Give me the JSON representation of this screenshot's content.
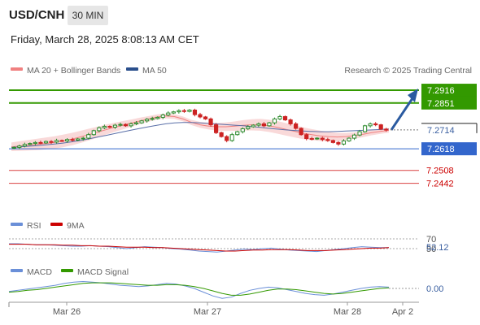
{
  "header": {
    "symbol": "USD/CNH",
    "interval": "30 MIN",
    "datetime": "Friday, March 28, 2025 8:08:13 AM CET"
  },
  "legend": {
    "ma20_label": "MA 20 + Bollinger Bands",
    "ma50_label": "MA 50",
    "ma20_color": "#f08080",
    "ma50_color": "#2a4f8c",
    "credit": "Research © 2025 Trading Central",
    "rsi_label": "RSI",
    "rsi_ma_label": "9MA",
    "rsi_color": "#6a8fd8",
    "rsi_ma_color": "#cc0000",
    "macd_label": "MACD",
    "macd_signal_label": "MACD Signal",
    "macd_color": "#6a8fd8",
    "macd_signal_color": "#339900"
  },
  "chart_data": {
    "type": "candlestick",
    "x_labels": [
      "Mar 26",
      "Mar 27",
      "Mar 28",
      "Apr 2"
    ],
    "price_ylim": [
      7.23,
      7.297
    ],
    "current_price": "7.2714",
    "levels": [
      {
        "label": "7.2916",
        "value": 7.2916,
        "color": "#339900",
        "style": "resistance"
      },
      {
        "label": "7.2851",
        "value": 7.2851,
        "color": "#339900",
        "style": "resistance"
      },
      {
        "label": "7.2618",
        "value": 7.2618,
        "color": "#3366cc",
        "style": "pivot"
      },
      {
        "label": "7.2508",
        "value": 7.2508,
        "color": "#cc0000",
        "style": "support"
      },
      {
        "label": "7.2442",
        "value": 7.2442,
        "color": "#cc0000",
        "style": "support"
      }
    ],
    "close_series": [
      7.2625,
      7.2632,
      7.264,
      7.2645,
      7.265,
      7.2648,
      7.2655,
      7.2652,
      7.266,
      7.2658,
      7.2665,
      7.2662,
      7.2668,
      7.2672,
      7.269,
      7.271,
      7.2725,
      7.2732,
      7.2728,
      7.2738,
      7.2742,
      7.2735,
      7.2745,
      7.275,
      7.276,
      7.2768,
      7.2772,
      7.2778,
      7.279,
      7.28,
      7.2806,
      7.2812,
      7.2808,
      7.2815,
      7.2792,
      7.278,
      7.277,
      7.274,
      7.27,
      7.268,
      7.266,
      7.269,
      7.2705,
      7.272,
      7.273,
      7.2738,
      7.2745,
      7.2735,
      7.275,
      7.277,
      7.2782,
      7.2765,
      7.2745,
      7.2722,
      7.269,
      7.267,
      7.2668,
      7.2672,
      7.2665,
      7.266,
      7.265,
      7.2642,
      7.2658,
      7.2672,
      7.2688,
      7.2705,
      7.2735,
      7.2745,
      7.274,
      7.2718,
      7.2714
    ],
    "ma20_series": [
      7.2628,
      7.2632,
      7.2636,
      7.264,
      7.2645,
      7.265,
      7.2658,
      7.2667,
      7.2678,
      7.269,
      7.2702,
      7.2715,
      7.2727,
      7.2738,
      7.2749,
      7.276,
      7.277,
      7.278,
      7.2785,
      7.2782,
      7.277,
      7.2752,
      7.274,
      7.2733,
      7.273,
      7.273,
      7.2733,
      7.2737,
      7.274,
      7.274,
      7.2735,
      7.2727,
      7.2717,
      7.2707,
      7.2697,
      7.269,
      7.2684,
      7.268,
      7.2678,
      7.268,
      7.2685,
      7.2692,
      7.27,
      7.2706,
      7.2712
    ],
    "ma50_series": [
      7.2625,
      7.2628,
      7.2631,
      7.2634,
      7.2638,
      7.2642,
      7.2647,
      7.2653,
      7.266,
      7.2668,
      7.2677,
      7.2686,
      7.2695,
      7.2704,
      7.2713,
      7.2722,
      7.273,
      7.2738,
      7.2745,
      7.275,
      7.2752,
      7.2752,
      7.275,
      7.2747,
      7.2744,
      7.2741,
      7.2738,
      7.2735,
      7.2731,
      7.2727,
      7.2722,
      7.2718,
      7.2714,
      7.2711,
      7.2708,
      7.2706,
      7.2705,
      7.2705,
      7.2706,
      7.2708,
      7.271,
      7.2712,
      7.2714,
      7.2716,
      7.2718
    ],
    "rsi_value": "52.12",
    "rsi_ticks": [
      "70",
      "50"
    ],
    "rsi_ylim": [
      30,
      80
    ],
    "rsi_series": [
      60,
      60,
      59,
      58,
      58,
      57,
      56,
      55,
      55,
      56,
      55,
      54,
      52,
      50,
      52,
      54,
      53,
      52,
      50,
      49,
      47,
      45,
      44,
      43,
      45,
      47,
      49,
      48,
      50,
      51,
      49,
      47,
      46,
      45,
      44,
      46,
      48,
      50,
      52,
      54,
      53,
      52,
      52
    ],
    "rsi_ma_series": [
      59,
      59,
      59,
      58,
      58,
      58,
      57,
      57,
      56,
      56,
      55,
      55,
      54,
      53,
      53,
      53,
      52,
      52,
      51,
      50,
      49,
      48,
      47,
      46,
      45,
      45,
      46,
      47,
      47,
      48,
      48,
      48,
      47,
      46,
      46,
      46,
      47,
      48,
      49,
      50,
      51,
      51,
      52
    ],
    "macd_value": "0.00",
    "macd_series": [
      -0.0005,
      -0.0003,
      -0.0001,
      0.0001,
      0.0003,
      0.0005,
      0.0008,
      0.001,
      0.0011,
      0.001,
      0.0009,
      0.0007,
      0.0005,
      0.0004,
      0.0003,
      0.0004,
      0.0006,
      0.0008,
      0.0007,
      0.0004,
      0.0,
      -0.0006,
      -0.0012,
      -0.0016,
      -0.0014,
      -0.0008,
      -0.0003,
      0.0,
      0.0002,
      0.0001,
      -0.0002,
      -0.0005,
      -0.0008,
      -0.001,
      -0.0011,
      -0.0009,
      -0.0006,
      -0.0003,
      0.0,
      0.0002,
      0.0003,
      0.0002
    ],
    "macd_signal_series": [
      -0.0006,
      -0.0005,
      -0.0003,
      -0.0002,
      0.0,
      0.0002,
      0.0004,
      0.0006,
      0.0008,
      0.0009,
      0.0009,
      0.0009,
      0.0008,
      0.0007,
      0.0006,
      0.0005,
      0.0005,
      0.0006,
      0.0006,
      0.0005,
      0.0003,
      0.0,
      -0.0004,
      -0.0008,
      -0.0011,
      -0.0011,
      -0.0009,
      -0.0006,
      -0.0003,
      -0.0001,
      -0.0001,
      -0.0002,
      -0.0004,
      -0.0006,
      -0.0008,
      -0.0009,
      -0.0008,
      -0.0006,
      -0.0004,
      -0.0002,
      0.0,
      0.0001
    ],
    "projection": {
      "from": 7.2714,
      "to": 7.2916
    }
  }
}
